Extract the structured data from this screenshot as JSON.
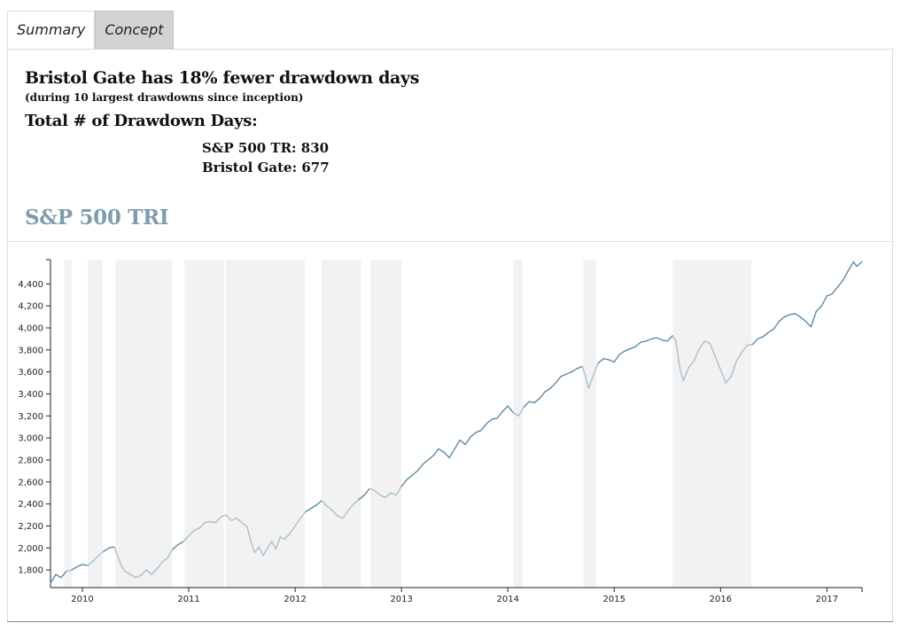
{
  "tabs": [
    {
      "label": "Summary",
      "active": true
    },
    {
      "label": "Concept",
      "active": false
    }
  ],
  "summary": {
    "headline": "Bristol Gate has 18% fewer drawdown days",
    "subheadline": "(during 10 largest drawdowns since inception)",
    "total_label": "Total # of Drawdown Days:",
    "sp500_stat": "S&P 500 TR: 830",
    "bristol_stat": "Bristol Gate: 677"
  },
  "colors": {
    "line": "#5f8aa3",
    "line_drawdown": "#a8c0cf",
    "shade": "#f2f2f2",
    "title": "#7d9cae"
  },
  "chart_data": {
    "type": "line",
    "title": "S&P 500 TRI",
    "xlabel": "",
    "ylabel": "",
    "xlim": [
      2009.7,
      2017.33
    ],
    "ylim": [
      1640,
      4620
    ],
    "x_ticks": [
      "2010",
      "2011",
      "2012",
      "2013",
      "2014",
      "2015",
      "2016",
      "2017"
    ],
    "y_ticks": [
      1800,
      2000,
      2200,
      2400,
      2600,
      2800,
      3000,
      3200,
      3400,
      3600,
      3800,
      4000,
      4200,
      4400
    ],
    "grid": false,
    "drawdown_periods": [
      [
        2009.83,
        2009.9
      ],
      [
        2010.05,
        2010.19
      ],
      [
        2010.31,
        2010.84
      ],
      [
        2010.96,
        2011.33
      ],
      [
        2011.35,
        2012.09
      ],
      [
        2012.25,
        2012.62
      ],
      [
        2012.71,
        2013.0
      ],
      [
        2014.05,
        2014.14
      ],
      [
        2014.71,
        2014.83
      ],
      [
        2015.55,
        2016.29
      ]
    ],
    "series": [
      {
        "values": [
          [
            2009.7,
            1680
          ],
          [
            2009.75,
            1760
          ],
          [
            2009.8,
            1730
          ],
          [
            2009.85,
            1790
          ],
          [
            2009.9,
            1800
          ],
          [
            2009.95,
            1830
          ],
          [
            2010.0,
            1850
          ],
          [
            2010.05,
            1840
          ],
          [
            2010.1,
            1880
          ],
          [
            2010.15,
            1930
          ],
          [
            2010.2,
            1970
          ],
          [
            2010.25,
            2000
          ],
          [
            2010.3,
            2010
          ],
          [
            2010.33,
            1930
          ],
          [
            2010.37,
            1830
          ],
          [
            2010.4,
            1790
          ],
          [
            2010.45,
            1760
          ],
          [
            2010.5,
            1730
          ],
          [
            2010.55,
            1750
          ],
          [
            2010.6,
            1800
          ],
          [
            2010.65,
            1760
          ],
          [
            2010.7,
            1810
          ],
          [
            2010.75,
            1870
          ],
          [
            2010.8,
            1910
          ],
          [
            2010.85,
            1990
          ],
          [
            2010.9,
            2030
          ],
          [
            2010.95,
            2060
          ],
          [
            2011.0,
            2110
          ],
          [
            2011.05,
            2160
          ],
          [
            2011.1,
            2180
          ],
          [
            2011.15,
            2230
          ],
          [
            2011.2,
            2240
          ],
          [
            2011.25,
            2230
          ],
          [
            2011.3,
            2280
          ],
          [
            2011.35,
            2300
          ],
          [
            2011.4,
            2250
          ],
          [
            2011.45,
            2270
          ],
          [
            2011.5,
            2230
          ],
          [
            2011.55,
            2190
          ],
          [
            2011.58,
            2070
          ],
          [
            2011.62,
            1960
          ],
          [
            2011.66,
            2010
          ],
          [
            2011.7,
            1930
          ],
          [
            2011.74,
            2000
          ],
          [
            2011.78,
            2060
          ],
          [
            2011.82,
            1990
          ],
          [
            2011.86,
            2100
          ],
          [
            2011.9,
            2080
          ],
          [
            2011.95,
            2130
          ],
          [
            2012.0,
            2200
          ],
          [
            2012.05,
            2270
          ],
          [
            2012.1,
            2330
          ],
          [
            2012.15,
            2360
          ],
          [
            2012.2,
            2390
          ],
          [
            2012.25,
            2430
          ],
          [
            2012.3,
            2380
          ],
          [
            2012.35,
            2340
          ],
          [
            2012.4,
            2290
          ],
          [
            2012.45,
            2270
          ],
          [
            2012.5,
            2340
          ],
          [
            2012.55,
            2400
          ],
          [
            2012.6,
            2440
          ],
          [
            2012.65,
            2480
          ],
          [
            2012.7,
            2540
          ],
          [
            2012.75,
            2520
          ],
          [
            2012.8,
            2480
          ],
          [
            2012.85,
            2460
          ],
          [
            2012.9,
            2500
          ],
          [
            2012.95,
            2480
          ],
          [
            2013.0,
            2560
          ],
          [
            2013.05,
            2620
          ],
          [
            2013.1,
            2660
          ],
          [
            2013.15,
            2700
          ],
          [
            2013.2,
            2760
          ],
          [
            2013.25,
            2800
          ],
          [
            2013.3,
            2840
          ],
          [
            2013.35,
            2900
          ],
          [
            2013.4,
            2870
          ],
          [
            2013.45,
            2820
          ],
          [
            2013.5,
            2900
          ],
          [
            2013.55,
            2980
          ],
          [
            2013.6,
            2940
          ],
          [
            2013.65,
            3010
          ],
          [
            2013.7,
            3050
          ],
          [
            2013.75,
            3070
          ],
          [
            2013.8,
            3130
          ],
          [
            2013.85,
            3170
          ],
          [
            2013.9,
            3180
          ],
          [
            2013.95,
            3240
          ],
          [
            2014.0,
            3290
          ],
          [
            2014.05,
            3230
          ],
          [
            2014.1,
            3200
          ],
          [
            2014.15,
            3280
          ],
          [
            2014.2,
            3330
          ],
          [
            2014.25,
            3320
          ],
          [
            2014.3,
            3360
          ],
          [
            2014.35,
            3420
          ],
          [
            2014.4,
            3450
          ],
          [
            2014.45,
            3500
          ],
          [
            2014.5,
            3560
          ],
          [
            2014.55,
            3580
          ],
          [
            2014.6,
            3600
          ],
          [
            2014.65,
            3630
          ],
          [
            2014.7,
            3650
          ],
          [
            2014.73,
            3560
          ],
          [
            2014.76,
            3450
          ],
          [
            2014.8,
            3560
          ],
          [
            2014.85,
            3680
          ],
          [
            2014.9,
            3720
          ],
          [
            2014.95,
            3710
          ],
          [
            2015.0,
            3690
          ],
          [
            2015.05,
            3760
          ],
          [
            2015.1,
            3790
          ],
          [
            2015.15,
            3810
          ],
          [
            2015.2,
            3830
          ],
          [
            2015.25,
            3870
          ],
          [
            2015.3,
            3880
          ],
          [
            2015.35,
            3900
          ],
          [
            2015.4,
            3910
          ],
          [
            2015.45,
            3890
          ],
          [
            2015.5,
            3880
          ],
          [
            2015.55,
            3930
          ],
          [
            2015.58,
            3880
          ],
          [
            2015.62,
            3620
          ],
          [
            2015.65,
            3520
          ],
          [
            2015.7,
            3640
          ],
          [
            2015.75,
            3700
          ],
          [
            2015.8,
            3810
          ],
          [
            2015.85,
            3880
          ],
          [
            2015.9,
            3860
          ],
          [
            2015.95,
            3740
          ],
          [
            2016.0,
            3620
          ],
          [
            2016.05,
            3500
          ],
          [
            2016.1,
            3560
          ],
          [
            2016.15,
            3700
          ],
          [
            2016.2,
            3780
          ],
          [
            2016.25,
            3840
          ],
          [
            2016.3,
            3850
          ],
          [
            2016.35,
            3900
          ],
          [
            2016.4,
            3920
          ],
          [
            2016.45,
            3960
          ],
          [
            2016.5,
            3990
          ],
          [
            2016.55,
            4060
          ],
          [
            2016.6,
            4100
          ],
          [
            2016.65,
            4120
          ],
          [
            2016.7,
            4130
          ],
          [
            2016.75,
            4100
          ],
          [
            2016.8,
            4060
          ],
          [
            2016.85,
            4010
          ],
          [
            2016.9,
            4150
          ],
          [
            2016.95,
            4200
          ],
          [
            2017.0,
            4290
          ],
          [
            2017.05,
            4310
          ],
          [
            2017.1,
            4370
          ],
          [
            2017.15,
            4430
          ],
          [
            2017.2,
            4520
          ],
          [
            2017.25,
            4600
          ],
          [
            2017.28,
            4560
          ],
          [
            2017.33,
            4600
          ]
        ]
      }
    ]
  }
}
